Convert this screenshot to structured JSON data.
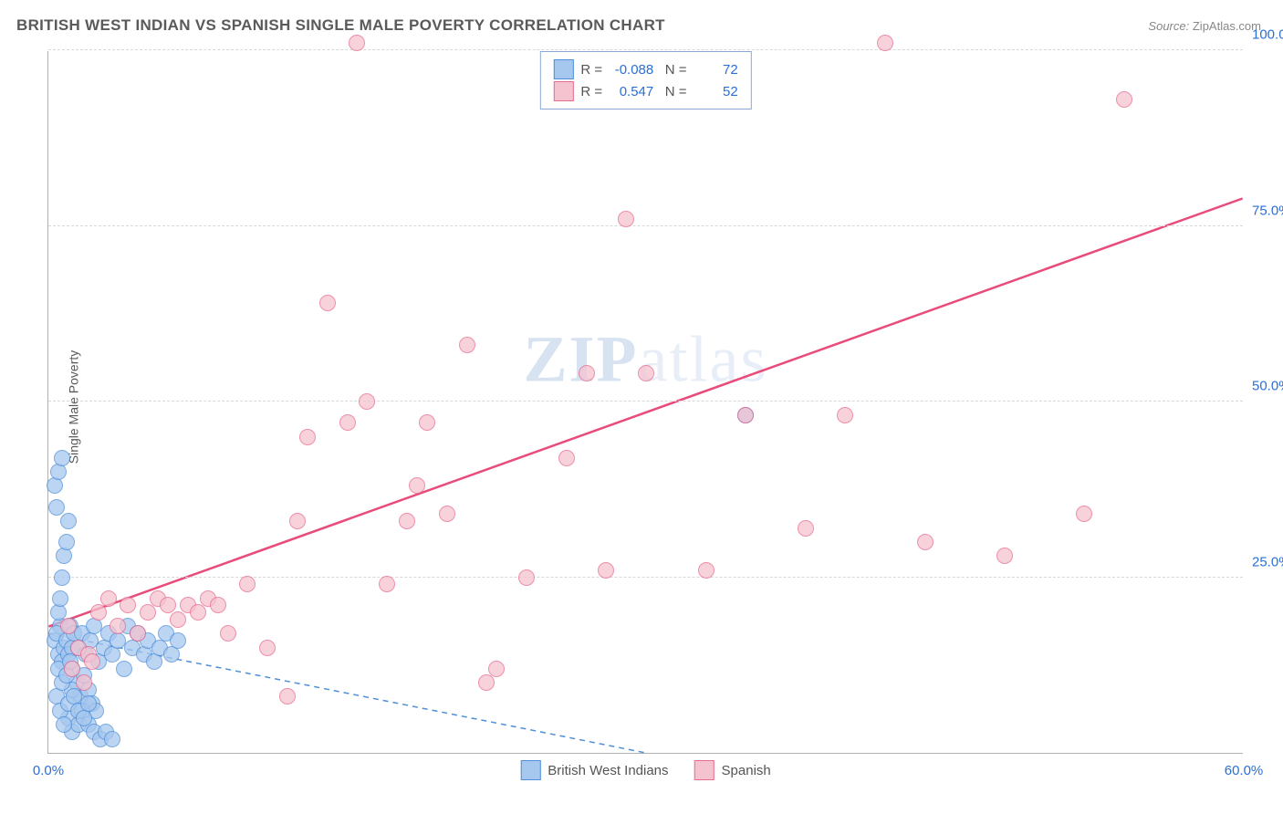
{
  "header": {
    "title": "BRITISH WEST INDIAN VS SPANISH SINGLE MALE POVERTY CORRELATION CHART",
    "source_label": "Source:",
    "source_value": "ZipAtlas.com"
  },
  "chart": {
    "type": "scatter",
    "y_axis_title": "Single Male Poverty",
    "background_color": "#ffffff",
    "grid_color": "#d8d8d8",
    "axis_color": "#b0b0b0",
    "tick_label_color": "#2b6fd6",
    "xlim": [
      0,
      60
    ],
    "ylim": [
      0,
      100
    ],
    "y_ticks": [
      25,
      50,
      75,
      100
    ],
    "y_tick_labels": [
      "25.0%",
      "50.0%",
      "75.0%",
      "100.0%"
    ],
    "x_ticks": [
      0,
      60
    ],
    "x_tick_labels": [
      "0.0%",
      "60.0%"
    ],
    "watermark_zip": "ZIP",
    "watermark_atlas": "atlas",
    "series": [
      {
        "name": "British West Indians",
        "marker_fill": "#a6c7ee",
        "marker_stroke": "#4f8fd9",
        "marker_radius": 9,
        "R": "-0.088",
        "N": "72",
        "trend": {
          "x1": 0,
          "y1": 17,
          "x2": 30,
          "y2": 0,
          "dash": "6,5",
          "width": 1.5,
          "color": "#4f8fd9"
        },
        "points": [
          [
            0.3,
            16
          ],
          [
            0.5,
            14
          ],
          [
            0.6,
            18
          ],
          [
            0.7,
            13
          ],
          [
            0.8,
            15
          ],
          [
            0.4,
            17
          ],
          [
            0.9,
            16
          ],
          [
            1.0,
            14
          ],
          [
            1.1,
            18
          ],
          [
            1.2,
            15
          ],
          [
            1.3,
            17
          ],
          [
            0.5,
            20
          ],
          [
            0.6,
            22
          ],
          [
            0.7,
            25
          ],
          [
            0.8,
            28
          ],
          [
            0.9,
            30
          ],
          [
            1.0,
            33
          ],
          [
            0.4,
            35
          ],
          [
            0.3,
            38
          ],
          [
            0.5,
            40
          ],
          [
            0.7,
            42
          ],
          [
            1.2,
            12
          ],
          [
            1.4,
            10
          ],
          [
            1.6,
            8
          ],
          [
            1.8,
            11
          ],
          [
            2.0,
            9
          ],
          [
            2.2,
            7
          ],
          [
            2.4,
            6
          ],
          [
            1.5,
            15
          ],
          [
            1.7,
            17
          ],
          [
            1.9,
            14
          ],
          [
            2.1,
            16
          ],
          [
            2.3,
            18
          ],
          [
            2.5,
            13
          ],
          [
            2.8,
            15
          ],
          [
            3.0,
            17
          ],
          [
            3.2,
            14
          ],
          [
            3.5,
            16
          ],
          [
            3.8,
            12
          ],
          [
            4.0,
            18
          ],
          [
            4.2,
            15
          ],
          [
            4.5,
            17
          ],
          [
            4.8,
            14
          ],
          [
            5.0,
            16
          ],
          [
            5.3,
            13
          ],
          [
            5.6,
            15
          ],
          [
            5.9,
            17
          ],
          [
            6.2,
            14
          ],
          [
            6.5,
            16
          ],
          [
            1.0,
            5
          ],
          [
            1.2,
            3
          ],
          [
            1.5,
            4
          ],
          [
            1.7,
            6
          ],
          [
            2.0,
            4
          ],
          [
            2.3,
            3
          ],
          [
            2.6,
            2
          ],
          [
            2.9,
            3
          ],
          [
            3.2,
            2
          ],
          [
            0.4,
            8
          ],
          [
            0.6,
            6
          ],
          [
            0.8,
            4
          ],
          [
            1.0,
            7
          ],
          [
            1.2,
            9
          ],
          [
            0.5,
            12
          ],
          [
            0.7,
            10
          ],
          [
            0.9,
            11
          ],
          [
            1.1,
            13
          ],
          [
            1.3,
            8
          ],
          [
            1.5,
            6
          ],
          [
            1.8,
            5
          ],
          [
            2.0,
            7
          ],
          [
            35,
            48
          ]
        ]
      },
      {
        "name": "Spanish",
        "marker_fill": "#f5c3d0",
        "marker_stroke": "#e76a8f",
        "marker_radius": 9,
        "R": "0.547",
        "N": "52",
        "trend": {
          "x1": 0,
          "y1": 18,
          "x2": 60,
          "y2": 79,
          "dash": "none",
          "width": 2.5,
          "color": "#e94b7a"
        },
        "points": [
          [
            1,
            18
          ],
          [
            1.5,
            15
          ],
          [
            2,
            14
          ],
          [
            2.5,
            20
          ],
          [
            3,
            22
          ],
          [
            3.5,
            18
          ],
          [
            4,
            21
          ],
          [
            4.5,
            17
          ],
          [
            5,
            20
          ],
          [
            5.5,
            22
          ],
          [
            6,
            21
          ],
          [
            6.5,
            19
          ],
          [
            7,
            21
          ],
          [
            7.5,
            20
          ],
          [
            8,
            22
          ],
          [
            8.5,
            21
          ],
          [
            9,
            17
          ],
          [
            10,
            24
          ],
          [
            11,
            15
          ],
          [
            12,
            8
          ],
          [
            12.5,
            33
          ],
          [
            13,
            45
          ],
          [
            14,
            64
          ],
          [
            15,
            47
          ],
          [
            15.5,
            101
          ],
          [
            16,
            50
          ],
          [
            17,
            24
          ],
          [
            18,
            33
          ],
          [
            18.5,
            38
          ],
          [
            19,
            47
          ],
          [
            20,
            34
          ],
          [
            21,
            58
          ],
          [
            22,
            10
          ],
          [
            22.5,
            12
          ],
          [
            24,
            25
          ],
          [
            26,
            42
          ],
          [
            27,
            54
          ],
          [
            28,
            26
          ],
          [
            29,
            76
          ],
          [
            30,
            54
          ],
          [
            33,
            26
          ],
          [
            35,
            48
          ],
          [
            38,
            32
          ],
          [
            40,
            48
          ],
          [
            42,
            101
          ],
          [
            44,
            30
          ],
          [
            48,
            28
          ],
          [
            52,
            34
          ],
          [
            54,
            93
          ],
          [
            1.2,
            12
          ],
          [
            1.8,
            10
          ],
          [
            2.2,
            13
          ]
        ]
      }
    ],
    "stats_box": {
      "R_label": "R =",
      "N_label": "N ="
    },
    "bottom_legend": [
      {
        "label": "British West Indians",
        "fill": "#a6c7ee",
        "stroke": "#4f8fd9"
      },
      {
        "label": "Spanish",
        "fill": "#f5c3d0",
        "stroke": "#e76a8f"
      }
    ]
  }
}
